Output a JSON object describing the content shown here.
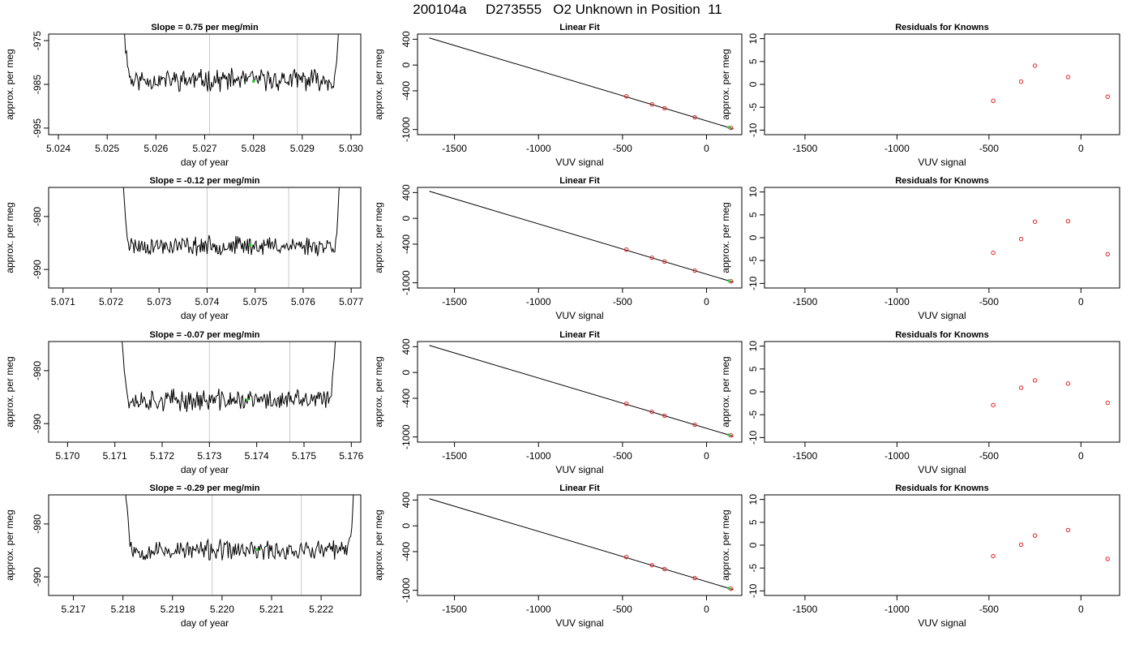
{
  "page_title": "200104a     D273555   O2 Unknown in Position  11",
  "colors": {
    "line": "#000000",
    "guide": "#c8c8c8",
    "unknown": "#33cc33",
    "known": "#dd2222"
  },
  "chart_data": [
    {
      "type": "line",
      "title": "Slope =  0.75  per meg/min",
      "xlabel": "day of year",
      "ylabel": "approx. per meg",
      "xlim": [
        5.0238,
        5.0302
      ],
      "ylim": [
        -996.5,
        -973.5
      ],
      "xticks": [
        5.024,
        5.025,
        5.026,
        5.027,
        5.028,
        5.029,
        5.03
      ],
      "xtick_labels": [
        "5.024",
        "5.025",
        "5.026",
        "5.027",
        "5.028",
        "5.029",
        "5.030"
      ],
      "yticks": [
        -975,
        -985,
        -995
      ],
      "ytick_labels": [
        "-975",
        "-985",
        "-995"
      ],
      "vlines": [
        5.0271,
        5.0289
      ],
      "series": [
        {
          "x_start": 5.0253,
          "x_end": 5.0298,
          "baseline": -984.0,
          "noise": 1.8,
          "seed": 11
        }
      ],
      "unknown_marker": {
        "x": 5.028,
        "y": -984.3
      }
    },
    {
      "type": "scatter",
      "title": "Linear Fit",
      "xlabel": "VUV signal",
      "ylabel": "approx. per meg",
      "xlim": [
        -1720,
        210
      ],
      "ylim": [
        -1080,
        480
      ],
      "xticks": [
        -1500,
        -1000,
        -500,
        0
      ],
      "xtick_labels": [
        "-1500",
        "-1000",
        "-500",
        "0"
      ],
      "yticks": [
        400,
        0,
        -400,
        -1000
      ],
      "ytick_labels": [
        "400",
        "0",
        "-400",
        "-1000"
      ],
      "fit_line": [
        [
          -1650,
          420
        ],
        [
          160,
          -990
        ]
      ],
      "points": [
        [
          -477,
          -485
        ],
        [
          -325,
          -610
        ],
        [
          -250,
          -670
        ],
        [
          -70,
          -810
        ],
        [
          145,
          -975
        ]
      ],
      "unknown": [
        [
          132,
          -968
        ]
      ]
    },
    {
      "type": "scatter",
      "title": "Residuals for Knowns",
      "xlabel": "VUV signal",
      "ylabel": "approx. per meg",
      "xlim": [
        -1720,
        210
      ],
      "ylim": [
        -11,
        11
      ],
      "xticks": [
        -1500,
        -1000,
        -500,
        0
      ],
      "xtick_labels": [
        "-1500",
        "-1000",
        "-500",
        "0"
      ],
      "yticks": [
        10,
        5,
        0,
        -5,
        -10
      ],
      "ytick_labels": [
        "10",
        "5",
        "0",
        "-5",
        "-10"
      ],
      "points": [
        [
          -477,
          -3.6
        ],
        [
          -325,
          0.6
        ],
        [
          -250,
          4.1
        ],
        [
          -70,
          1.6
        ],
        [
          145,
          -2.7
        ]
      ]
    },
    {
      "type": "line",
      "title": "Slope =  -0.12  per meg/min",
      "xlabel": "day of year",
      "ylabel": "approx. per meg",
      "xlim": [
        5.0707,
        5.0772
      ],
      "ylim": [
        -993.5,
        -974.5
      ],
      "xticks": [
        5.071,
        5.072,
        5.073,
        5.074,
        5.075,
        5.076,
        5.077
      ],
      "xtick_labels": [
        "5.071",
        "5.072",
        "5.073",
        "5.074",
        "5.075",
        "5.076",
        "5.077"
      ],
      "yticks": [
        -980,
        -990
      ],
      "ytick_labels": [
        "-980",
        "-990"
      ],
      "vlines": [
        5.074,
        5.0757
      ],
      "series": [
        {
          "x_start": 5.0722,
          "x_end": 5.0768,
          "baseline": -985.5,
          "noise": 1.3,
          "seed": 23
        }
      ],
      "unknown_marker": {
        "x": 5.0749,
        "y": -985.4
      }
    },
    {
      "type": "scatter",
      "title": "Linear Fit",
      "xlabel": "VUV signal",
      "ylabel": "approx. per meg",
      "xlim": [
        -1720,
        210
      ],
      "ylim": [
        -1080,
        480
      ],
      "xticks": [
        -1500,
        -1000,
        -500,
        0
      ],
      "xtick_labels": [
        "-1500",
        "-1000",
        "-500",
        "0"
      ],
      "yticks": [
        400,
        0,
        -400,
        -1000
      ],
      "ytick_labels": [
        "400",
        "0",
        "-400",
        "-1000"
      ],
      "fit_line": [
        [
          -1650,
          420
        ],
        [
          160,
          -990
        ]
      ],
      "points": [
        [
          -477,
          -485
        ],
        [
          -325,
          -610
        ],
        [
          -250,
          -670
        ],
        [
          -70,
          -810
        ],
        [
          145,
          -975
        ]
      ],
      "unknown": [
        [
          132,
          -968
        ]
      ]
    },
    {
      "type": "scatter",
      "title": "Residuals for Knowns",
      "xlabel": "VUV signal",
      "ylabel": "approx. per meg",
      "xlim": [
        -1720,
        210
      ],
      "ylim": [
        -11,
        11
      ],
      "xticks": [
        -1500,
        -1000,
        -500,
        0
      ],
      "xtick_labels": [
        "-1500",
        "-1000",
        "-500",
        "0"
      ],
      "yticks": [
        10,
        5,
        0,
        -5,
        -10
      ],
      "ytick_labels": [
        "10",
        "5",
        "0",
        "-5",
        "-10"
      ],
      "points": [
        [
          -477,
          -3.3
        ],
        [
          -325,
          -0.3
        ],
        [
          -250,
          3.5
        ],
        [
          -70,
          3.6
        ],
        [
          145,
          -3.6
        ]
      ]
    },
    {
      "type": "line",
      "title": "Slope =  -0.07  per meg/min",
      "xlabel": "day of year",
      "ylabel": "approx. per meg",
      "xlim": [
        5.1696,
        5.1762
      ],
      "ylim": [
        -993.5,
        -974.5
      ],
      "xticks": [
        5.17,
        5.171,
        5.172,
        5.173,
        5.174,
        5.175,
        5.176
      ],
      "xtick_labels": [
        "5.170",
        "5.171",
        "5.172",
        "5.173",
        "5.174",
        "5.175",
        "5.176"
      ],
      "yticks": [
        -980,
        -990
      ],
      "ytick_labels": [
        "-980",
        "-990"
      ],
      "vlines": [
        5.173,
        5.1747
      ],
      "series": [
        {
          "x_start": 5.1711,
          "x_end": 5.1757,
          "baseline": -985.6,
          "noise": 1.5,
          "seed": 37
        }
      ],
      "unknown_marker": {
        "x": 5.1738,
        "y": -985.5
      }
    },
    {
      "type": "scatter",
      "title": "Linear Fit",
      "xlabel": "VUV signal",
      "ylabel": "approx. per meg",
      "xlim": [
        -1720,
        210
      ],
      "ylim": [
        -1080,
        480
      ],
      "xticks": [
        -1500,
        -1000,
        -500,
        0
      ],
      "xtick_labels": [
        "-1500",
        "-1000",
        "-500",
        "0"
      ],
      "yticks": [
        400,
        0,
        -400,
        -1000
      ],
      "ytick_labels": [
        "400",
        "0",
        "-400",
        "-1000"
      ],
      "fit_line": [
        [
          -1650,
          420
        ],
        [
          160,
          -990
        ]
      ],
      "points": [
        [
          -477,
          -485
        ],
        [
          -325,
          -610
        ],
        [
          -250,
          -670
        ],
        [
          -70,
          -810
        ],
        [
          145,
          -975
        ]
      ],
      "unknown": [
        [
          132,
          -968
        ]
      ]
    },
    {
      "type": "scatter",
      "title": "Residuals for Knowns",
      "xlabel": "VUV signal",
      "ylabel": "approx. per meg",
      "xlim": [
        -1720,
        210
      ],
      "ylim": [
        -11,
        11
      ],
      "xticks": [
        -1500,
        -1000,
        -500,
        0
      ],
      "xtick_labels": [
        "-1500",
        "-1000",
        "-500",
        "0"
      ],
      "yticks": [
        10,
        5,
        0,
        -5,
        -10
      ],
      "ytick_labels": [
        "10",
        "5",
        "0",
        "-5",
        "-10"
      ],
      "points": [
        [
          -477,
          -2.9
        ],
        [
          -325,
          0.9
        ],
        [
          -250,
          2.5
        ],
        [
          -70,
          1.8
        ],
        [
          145,
          -2.4
        ]
      ]
    },
    {
      "type": "line",
      "title": "Slope =  -0.29  per meg/min",
      "xlabel": "day of year",
      "ylabel": "approx. per meg",
      "xlim": [
        5.2165,
        5.2228
      ],
      "ylim": [
        -993.5,
        -974.5
      ],
      "xticks": [
        5.217,
        5.218,
        5.219,
        5.22,
        5.221,
        5.222
      ],
      "xtick_labels": [
        "5.217",
        "5.218",
        "5.219",
        "5.220",
        "5.221",
        "5.222"
      ],
      "yticks": [
        -980,
        -990
      ],
      "ytick_labels": [
        "-980",
        "-990"
      ],
      "vlines": [
        5.2198,
        5.2216
      ],
      "series": [
        {
          "x_start": 5.218,
          "x_end": 5.2227,
          "baseline": -985.0,
          "noise": 1.4,
          "seed": 53
        }
      ],
      "unknown_marker": {
        "x": 5.2207,
        "y": -984.8
      }
    },
    {
      "type": "scatter",
      "title": "Linear Fit",
      "xlabel": "VUV signal",
      "ylabel": "approx. per meg",
      "xlim": [
        -1720,
        210
      ],
      "ylim": [
        -1080,
        480
      ],
      "xticks": [
        -1500,
        -1000,
        -500,
        0
      ],
      "xtick_labels": [
        "-1500",
        "-1000",
        "-500",
        "0"
      ],
      "yticks": [
        400,
        0,
        -400,
        -1000
      ],
      "ytick_labels": [
        "400",
        "0",
        "-400",
        "-1000"
      ],
      "fit_line": [
        [
          -1650,
          420
        ],
        [
          160,
          -990
        ]
      ],
      "points": [
        [
          -477,
          -485
        ],
        [
          -325,
          -610
        ],
        [
          -250,
          -670
        ],
        [
          -70,
          -810
        ],
        [
          145,
          -975
        ]
      ],
      "unknown": [
        [
          132,
          -968
        ]
      ]
    },
    {
      "type": "scatter",
      "title": "Residuals for Knowns",
      "xlabel": "VUV signal",
      "ylabel": "approx. per meg",
      "xlim": [
        -1720,
        210
      ],
      "ylim": [
        -11,
        11
      ],
      "xticks": [
        -1500,
        -1000,
        -500,
        0
      ],
      "xtick_labels": [
        "-1500",
        "-1000",
        "-500",
        "0"
      ],
      "yticks": [
        10,
        5,
        0,
        -5,
        -10
      ],
      "ytick_labels": [
        "10",
        "5",
        "0",
        "-5",
        "-10"
      ],
      "points": [
        [
          -477,
          -2.4
        ],
        [
          -325,
          0.1
        ],
        [
          -250,
          2.1
        ],
        [
          -70,
          3.3
        ],
        [
          145,
          -3.0
        ]
      ]
    }
  ]
}
